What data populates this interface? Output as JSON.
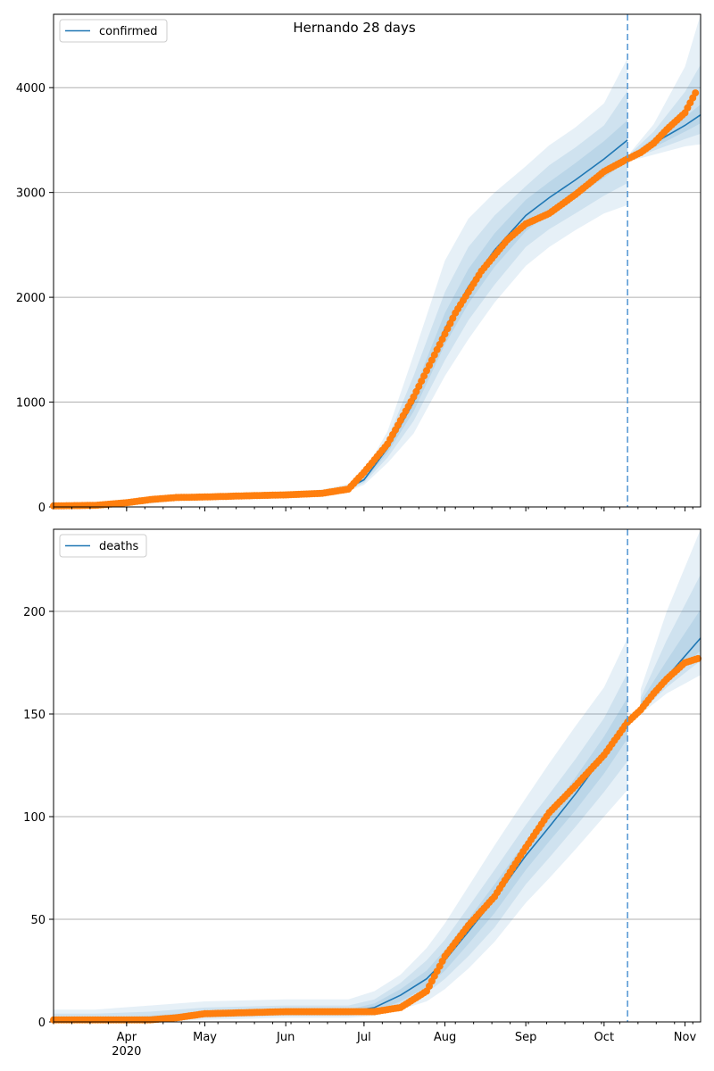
{
  "title": "Hernando 28 days",
  "colors": {
    "model_line": "#1f77b4",
    "observed_points": "#ff7f0e",
    "band": "#1f77b4",
    "cutoff_line": "#5b9bd5",
    "grid": "#b0b0b0"
  },
  "x_axis": {
    "start": "2020-03-04",
    "end": "2020-11-07",
    "month_ticks": [
      {
        "date": "2020-04-01",
        "label": "Apr"
      },
      {
        "date": "2020-05-01",
        "label": "May"
      },
      {
        "date": "2020-06-01",
        "label": "Jun"
      },
      {
        "date": "2020-07-01",
        "label": "Jul"
      },
      {
        "date": "2020-08-01",
        "label": "Aug"
      },
      {
        "date": "2020-09-01",
        "label": "Sep"
      },
      {
        "date": "2020-10-01",
        "label": "Oct"
      },
      {
        "date": "2020-11-01",
        "label": "Nov"
      }
    ],
    "year_label": "2020",
    "forecast_cutoff": "2020-10-10"
  },
  "chart_data": [
    {
      "type": "line",
      "legend": "confirmed",
      "legend_position": "top-left",
      "grid": "y",
      "ylim": [
        0,
        4700
      ],
      "yticks": [
        0,
        1000,
        2000,
        3000,
        4000
      ],
      "model": {
        "x": [
          "2020-03-04",
          "2020-03-20",
          "2020-04-05",
          "2020-04-20",
          "2020-05-05",
          "2020-05-20",
          "2020-06-05",
          "2020-06-15",
          "2020-06-25",
          "2020-07-01",
          "2020-07-10",
          "2020-07-20",
          "2020-08-01",
          "2020-08-10",
          "2020-08-20",
          "2020-09-01",
          "2020-09-10",
          "2020-09-20",
          "2020-10-01",
          "2020-10-10",
          "2020-10-11",
          "2020-10-20",
          "2020-11-01",
          "2020-11-07"
        ],
        "y": [
          0,
          5,
          40,
          90,
          100,
          110,
          120,
          135,
          180,
          260,
          560,
          1000,
          1700,
          2100,
          2450,
          2780,
          2950,
          3120,
          3320,
          3500,
          3340,
          3470,
          3640,
          3740
        ],
        "bands": [
          {
            "lower": [
              0,
              0,
              20,
              60,
              75,
              85,
              95,
              110,
              150,
              210,
              420,
              700,
              1250,
              1600,
              1950,
              2300,
              2480,
              2640,
              2800,
              2880,
              3300,
              3360,
              3440,
              3460
            ],
            "upper": [
              15,
              25,
              65,
              120,
              130,
              140,
              150,
              165,
              220,
              330,
              720,
              1450,
              2350,
              2750,
              3000,
              3250,
              3450,
              3620,
              3850,
              4280,
              3380,
              3650,
              4200,
              4700
            ]
          },
          {
            "lower": [
              0,
              2,
              28,
              72,
              86,
              95,
              105,
              120,
              162,
              230,
              470,
              820,
              1400,
              1780,
              2120,
              2480,
              2650,
              2800,
              2970,
              3090,
              3315,
              3400,
              3510,
              3560
            ],
            "upper": [
              10,
              15,
              55,
              110,
              118,
              128,
              138,
              153,
              202,
              300,
              650,
              1250,
              2050,
              2480,
              2780,
              3060,
              3260,
              3430,
              3640,
              3970,
              3370,
              3580,
              3960,
              4220
            ]
          },
          {
            "lower": [
              0,
              3,
              34,
              80,
              93,
              103,
              113,
              128,
              172,
              245,
              515,
              910,
              1550,
              1940,
              2290,
              2630,
              2800,
              2960,
              3140,
              3310,
              3330,
              3430,
              3580,
              3660
            ],
            "upper": [
              7,
              9,
              47,
              101,
              108,
              118,
              128,
              143,
              189,
              276,
              605,
              1100,
              1850,
              2270,
              2610,
              2930,
              3100,
              3280,
              3490,
              3690,
              3355,
              3520,
              3720,
              3840
            ]
          }
        ]
      },
      "observed": {
        "x": [
          "2020-03-04",
          "2020-03-20",
          "2020-04-01",
          "2020-04-10",
          "2020-04-20",
          "2020-05-01",
          "2020-05-15",
          "2020-06-01",
          "2020-06-15",
          "2020-06-25",
          "2020-07-01",
          "2020-07-10",
          "2020-07-20",
          "2020-07-28",
          "2020-08-05",
          "2020-08-15",
          "2020-08-25",
          "2020-09-01",
          "2020-09-10",
          "2020-09-20",
          "2020-10-01",
          "2020-10-10",
          "2020-10-15",
          "2020-10-20",
          "2020-10-25",
          "2020-11-01",
          "2020-11-05"
        ],
        "y": [
          10,
          15,
          40,
          70,
          90,
          95,
          105,
          115,
          130,
          170,
          330,
          600,
          1050,
          1450,
          1850,
          2250,
          2550,
          2700,
          2800,
          2980,
          3200,
          3320,
          3380,
          3470,
          3600,
          3760,
          3950
        ]
      }
    },
    {
      "type": "line",
      "legend": "deaths",
      "legend_position": "top-left",
      "grid": "y",
      "ylim": [
        0,
        240
      ],
      "yticks": [
        0,
        50,
        100,
        150,
        200
      ],
      "model": {
        "x": [
          "2020-03-04",
          "2020-03-20",
          "2020-04-10",
          "2020-05-01",
          "2020-06-01",
          "2020-06-25",
          "2020-07-05",
          "2020-07-15",
          "2020-07-25",
          "2020-08-01",
          "2020-08-10",
          "2020-08-20",
          "2020-09-01",
          "2020-09-10",
          "2020-09-20",
          "2020-10-01",
          "2020-10-10",
          "2020-10-15",
          "2020-10-25",
          "2020-11-07"
        ],
        "y": [
          0,
          0,
          2,
          4,
          5,
          5,
          7,
          13,
          21,
          30,
          44,
          60,
          81,
          95,
          111,
          130,
          148,
          154,
          168,
          187
        ],
        "bands": [
          {
            "lower": [
              0,
              0,
              0,
              1,
              2,
              2,
              3,
              6,
              10,
              16,
              26,
              39,
              58,
              70,
              84,
              100,
              113,
              150,
              160,
              169
            ],
            "upper": [
              6,
              6,
              8,
              10,
              11,
              11,
              15,
              23,
              36,
              48,
              66,
              86,
              109,
              126,
              144,
              163,
              187,
              162,
              200,
              240
            ]
          },
          {
            "lower": [
              0,
              0,
              1,
              2,
              3,
              3,
              4,
              8,
              14,
              21,
              32,
              46,
              67,
              80,
              95,
              112,
              127,
              151,
              163,
              176
            ],
            "upper": [
              4,
              4,
              5,
              7,
              8,
              8,
              11,
              19,
              30,
              40,
              56,
              74,
              96,
              111,
              128,
              148,
              170,
              158,
              186,
              218
            ]
          },
          {
            "lower": [
              0,
              0,
              1,
              3,
              4,
              4,
              5,
              10,
              17,
              25,
              38,
              53,
              74,
              88,
              103,
              121,
              138,
              152,
              165,
              181
            ],
            "upper": [
              2,
              2,
              3,
              5,
              6,
              6,
              9,
              16,
              25,
              35,
              50,
              67,
              88,
              102,
              119,
              139,
              158,
              156,
              176,
              201
            ]
          }
        ]
      },
      "observed": {
        "x": [
          "2020-03-04",
          "2020-03-20",
          "2020-04-10",
          "2020-04-20",
          "2020-05-01",
          "2020-06-01",
          "2020-06-25",
          "2020-07-05",
          "2020-07-15",
          "2020-07-25",
          "2020-08-01",
          "2020-08-10",
          "2020-08-20",
          "2020-09-01",
          "2020-09-10",
          "2020-09-20",
          "2020-10-01",
          "2020-10-10",
          "2020-10-15",
          "2020-10-20",
          "2020-10-25",
          "2020-11-01",
          "2020-11-06"
        ],
        "y": [
          1,
          1,
          1,
          2,
          4,
          5,
          5,
          5,
          7,
          15,
          32,
          47,
          61,
          85,
          102,
          115,
          130,
          146,
          152,
          160,
          167,
          175,
          177
        ]
      }
    }
  ]
}
